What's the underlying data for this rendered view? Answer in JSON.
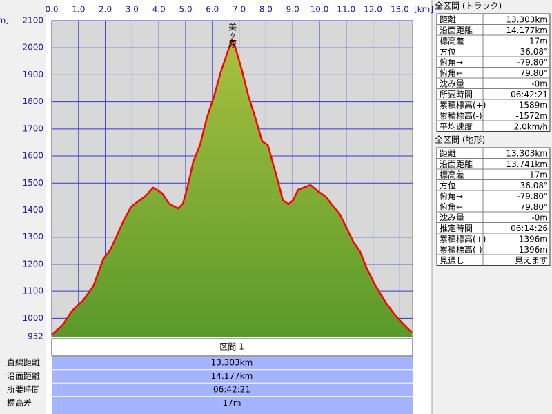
{
  "chart_data": {
    "type": "area",
    "x_unit": "[km]",
    "y_unit": "[m]",
    "annotation": "美ヶ原",
    "x": [
      0.0,
      0.39,
      0.77,
      1.16,
      1.55,
      1.93,
      2.19,
      2.45,
      2.71,
      2.96,
      3.22,
      3.48,
      3.79,
      4.12,
      4.38,
      4.72,
      4.9,
      5.08,
      5.28,
      5.54,
      5.8,
      6.06,
      6.31,
      6.57,
      6.73,
      6.88,
      7.09,
      7.35,
      7.6,
      7.86,
      8.07,
      8.25,
      8.43,
      8.63,
      8.84,
      9.02,
      9.2,
      9.66,
      9.97,
      10.23,
      10.49,
      10.75,
      11.01,
      11.26,
      11.52,
      11.78,
      12.11,
      12.5,
      12.89,
      13.27,
      13.45
    ],
    "values": [
      940,
      973,
      1029,
      1065,
      1118,
      1220,
      1254,
      1310,
      1366,
      1412,
      1432,
      1450,
      1483,
      1463,
      1424,
      1406,
      1424,
      1488,
      1577,
      1641,
      1743,
      1820,
      1909,
      1985,
      2029,
      1993,
      1922,
      1820,
      1743,
      1654,
      1641,
      1577,
      1514,
      1437,
      1422,
      1437,
      1475,
      1493,
      1468,
      1450,
      1417,
      1386,
      1335,
      1284,
      1246,
      1182,
      1118,
      1055,
      1004,
      965,
      948
    ],
    "color": "#ff0000",
    "fill_color": "#5a9a2a",
    "grid_color": "#3838c8",
    "xlim": [
      0,
      13.48
    ],
    "ylim": [
      932,
      2100
    ],
    "xticks": [
      {
        "value": 0,
        "label": "0.0"
      },
      {
        "value": 1,
        "label": "1.0"
      },
      {
        "value": 2,
        "label": "2.0"
      },
      {
        "value": 3,
        "label": "3.0"
      },
      {
        "value": 4,
        "label": "4.0"
      },
      {
        "value": 5,
        "label": "5.0"
      },
      {
        "value": 6,
        "label": "6.0"
      },
      {
        "value": 7,
        "label": "7.0"
      },
      {
        "value": 8,
        "label": "8.0"
      },
      {
        "value": 9,
        "label": "9.0"
      },
      {
        "value": 10,
        "label": "10.0"
      },
      {
        "value": 11,
        "label": "11.0"
      },
      {
        "value": 12,
        "label": "12.0"
      },
      {
        "value": 13,
        "label": "13.0"
      }
    ],
    "yticks": [
      932,
      1000,
      1100,
      1200,
      1300,
      1400,
      1500,
      1600,
      1700,
      1800,
      1900,
      2000,
      2100
    ],
    "grid": true
  },
  "segment_table": {
    "header": "区間 1",
    "rows": [
      [
        "直線距離",
        "13.303km"
      ],
      [
        "沿面距離",
        "14.177km"
      ],
      [
        "所要時間",
        "06:42:21"
      ],
      [
        "標高差",
        "17m"
      ]
    ]
  },
  "track_table": {
    "title": "全区間 (トラック)",
    "rows": [
      [
        "距離",
        "13.303km"
      ],
      [
        "沿面距離",
        "14.177km"
      ],
      [
        "標高差",
        "17m"
      ],
      [
        "方位",
        "36.08°"
      ],
      [
        "俯角→",
        "-79.80°"
      ],
      [
        "俯角←",
        "79.80°"
      ],
      [
        "沈み量",
        "-0m"
      ],
      [
        "所要時間",
        "06:42:21"
      ],
      [
        "累積標高(+)",
        "1589m"
      ],
      [
        "累積標高(-)",
        "-1572m"
      ],
      [
        "平均速度",
        "2.0km/h"
      ]
    ]
  },
  "terrain_table": {
    "title": "全区間 (地形)",
    "rows": [
      [
        "距離",
        "13.303km"
      ],
      [
        "沿面距離",
        "13.741km"
      ],
      [
        "標高差",
        "17m"
      ],
      [
        "方位",
        "36.08°"
      ],
      [
        "俯角→",
        "-79.80°"
      ],
      [
        "俯角←",
        "79.80°"
      ],
      [
        "沈み量",
        "-0m"
      ],
      [
        "推定時間",
        "06:14:26"
      ],
      [
        "累積標高(+)",
        "1396m"
      ],
      [
        "累積標高(-)",
        "-1396m"
      ],
      [
        "見通し",
        "見えます"
      ]
    ]
  }
}
